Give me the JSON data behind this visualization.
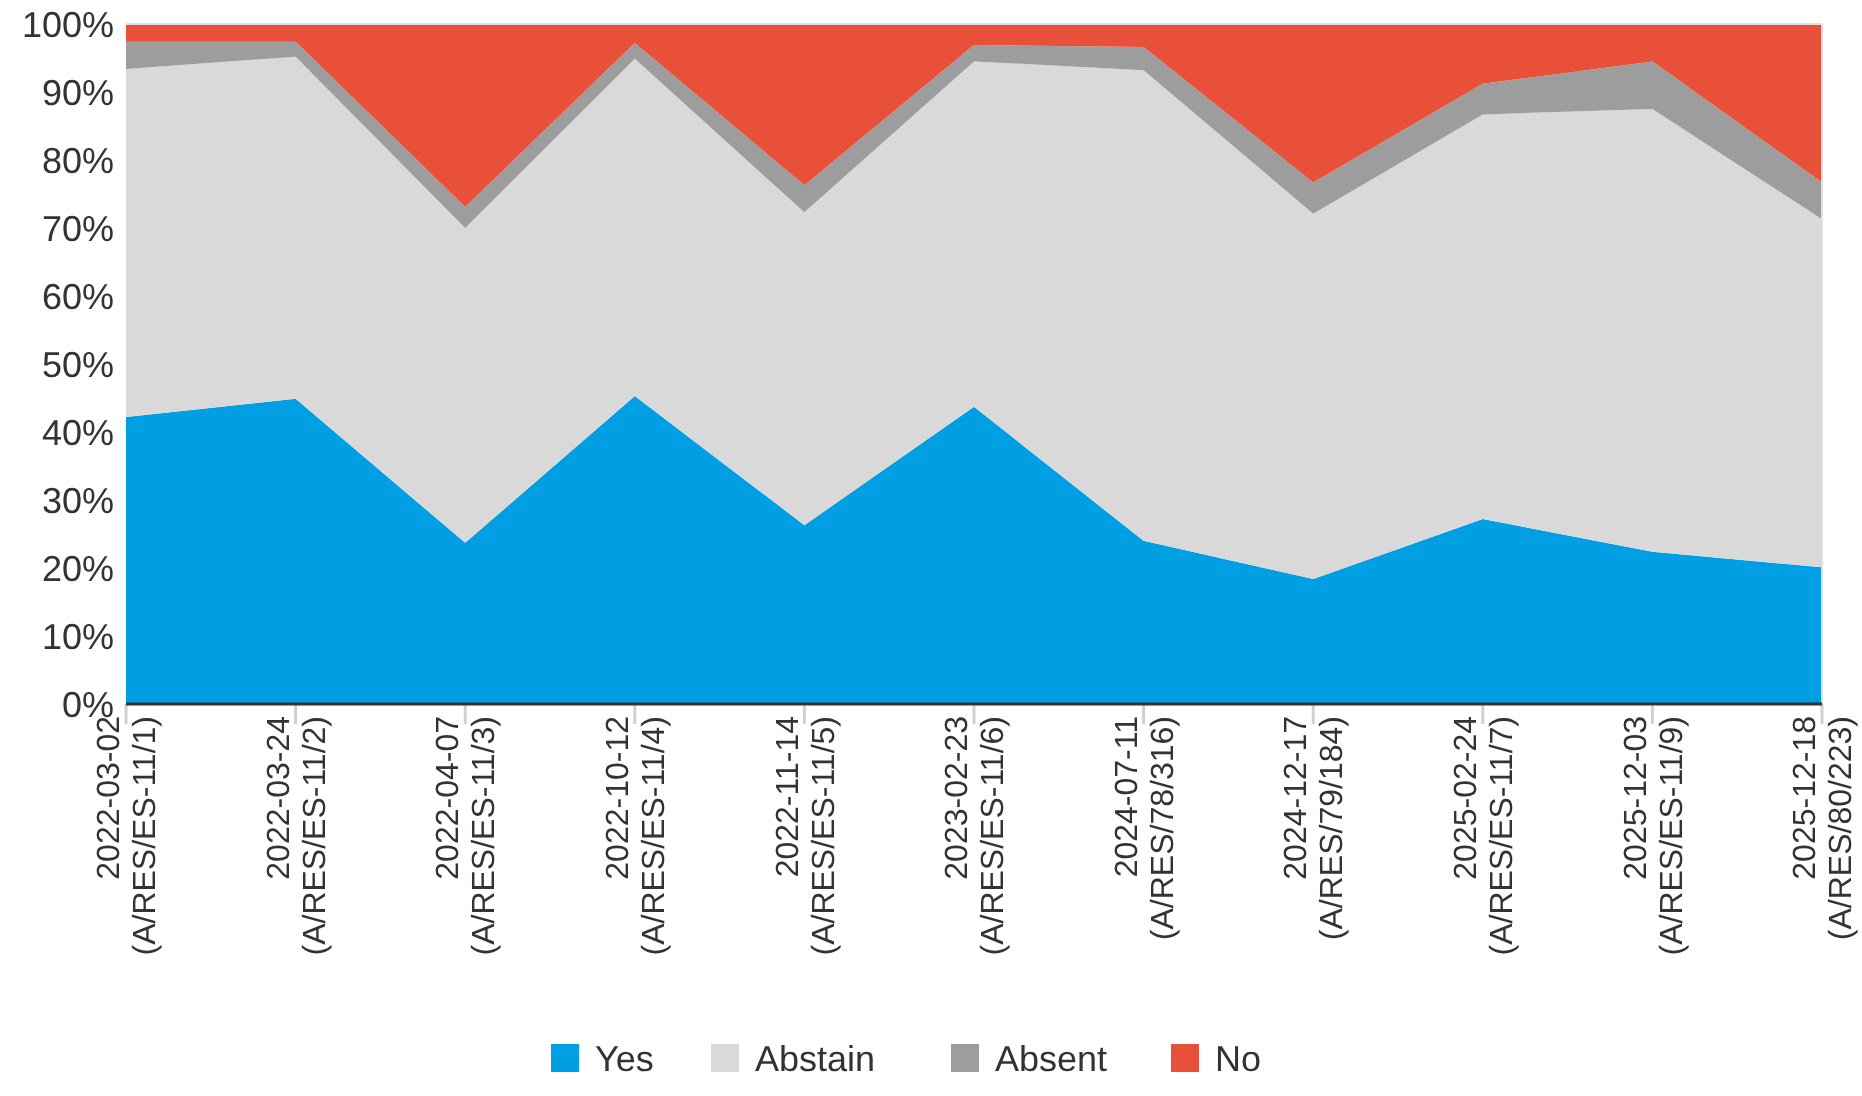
{
  "chart_data": {
    "type": "area",
    "stacked": true,
    "categories": [
      "2022-03-02\n(A/RES/ES-11/1)",
      "2022-03-24\n(A/RES/ES-11/2)",
      "2022-04-07\n(A/RES/ES-11/3)",
      "2022-10-12\n(A/RES/ES-11/4)",
      "2022-11-14\n(A/RES/ES-11/5)",
      "2023-02-23\n(A/RES/ES-11/6)",
      "2024-07-11\n(A/RES/78/316)",
      "2024-12-17\n(A/RES/79/184)",
      "2025-02-24\n(A/RES/ES-11/7)",
      "2025-12-03\n(A/RES/ES-11/9)",
      "2025-12-18\n(A/RES/80/223)"
    ],
    "series": [
      {
        "name": "Yes",
        "color": "#009fe3",
        "values": [
          42.2,
          44.9,
          23.7,
          45.3,
          26.3,
          43.7,
          24.0,
          18.4,
          27.2,
          22.4,
          20.1
        ]
      },
      {
        "name": "Abstain",
        "color": "#d9d9d9",
        "values": [
          51.2,
          50.3,
          46.3,
          49.6,
          46.0,
          50.8,
          69.2,
          53.7,
          59.5,
          65.1,
          51.2
        ]
      },
      {
        "name": "Absent",
        "color": "#9d9d9d",
        "values": [
          4.0,
          2.2,
          3.1,
          2.3,
          4.0,
          2.4,
          3.4,
          4.6,
          4.5,
          7.0,
          5.4
        ]
      },
      {
        "name": "No",
        "color": "#e8503a",
        "values": [
          2.6,
          2.6,
          26.9,
          2.8,
          23.7,
          3.1,
          3.4,
          23.3,
          8.8,
          5.5,
          23.3
        ]
      }
    ],
    "ylim": [
      0,
      100
    ],
    "yticks": [
      {
        "value": 0,
        "label": "0%"
      },
      {
        "value": 10,
        "label": "10%"
      },
      {
        "value": 20,
        "label": "20%"
      },
      {
        "value": 30,
        "label": "30%"
      },
      {
        "value": 40,
        "label": "40%"
      },
      {
        "value": 50,
        "label": "50%"
      },
      {
        "value": 60,
        "label": "60%"
      },
      {
        "value": 70,
        "label": "70%"
      },
      {
        "value": 80,
        "label": "80%"
      },
      {
        "value": 90,
        "label": "90%"
      },
      {
        "value": 100,
        "label": "100%"
      }
    ],
    "legend": "bottom"
  }
}
